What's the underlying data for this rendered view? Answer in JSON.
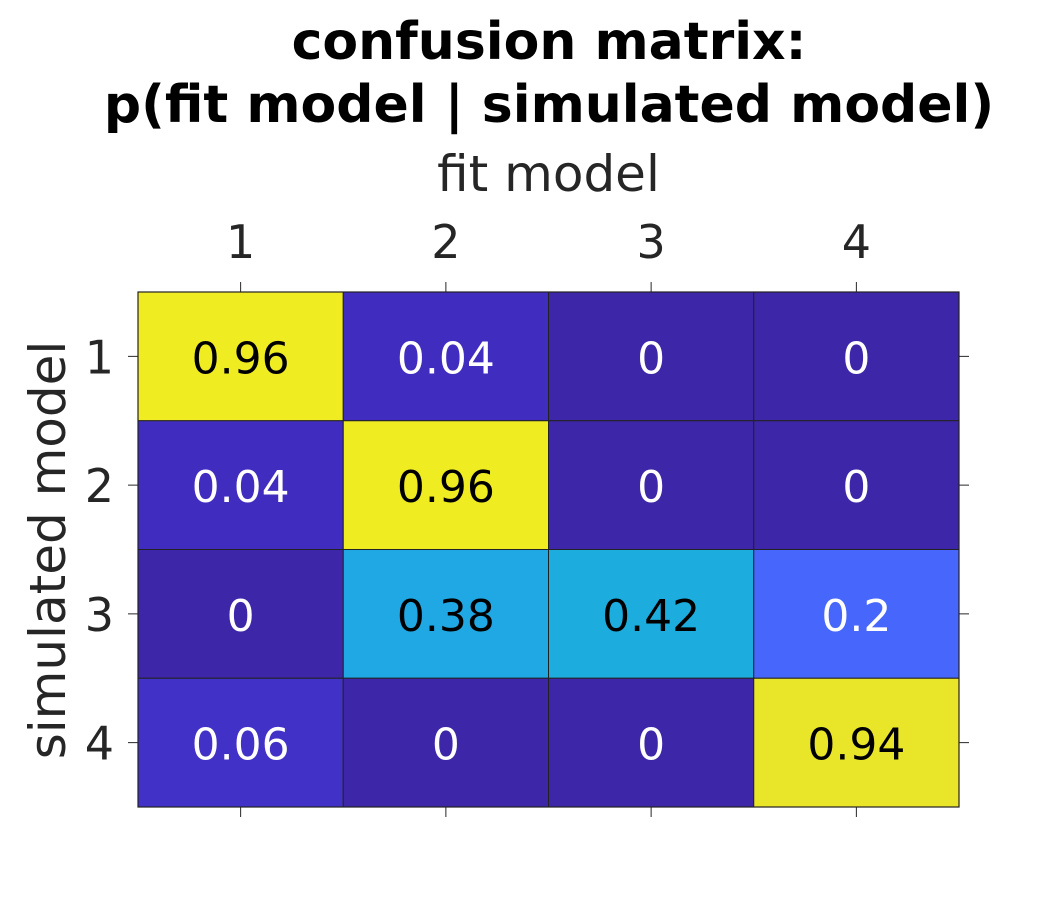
{
  "chart_data": {
    "type": "heatmap",
    "title": [
      "confusion matrix:",
      "p(fit model | simulated model)"
    ],
    "xlabel": "fit model",
    "ylabel": "simulated model",
    "x_categories": [
      "1",
      "2",
      "3",
      "4"
    ],
    "y_categories": [
      "1",
      "2",
      "3",
      "4"
    ],
    "x_axis_position": "top",
    "values": [
      [
        0.96,
        0.04,
        0,
        0
      ],
      [
        0.04,
        0.96,
        0,
        0
      ],
      [
        0,
        0.38,
        0.42,
        0.2
      ],
      [
        0.06,
        0,
        0,
        0.94
      ]
    ],
    "cell_labels": [
      [
        "0.96",
        "0.04",
        "0",
        "0"
      ],
      [
        "0.04",
        "0.96",
        "0",
        "0"
      ],
      [
        "0",
        "0.38",
        "0.42",
        "0.2"
      ],
      [
        "0.06",
        "0",
        "0",
        "0.94"
      ]
    ],
    "colormap": "parula",
    "clim": [
      0,
      1
    ],
    "colors": {
      "low": "#3e26a8",
      "high": "#f9fb15",
      "text_dark": "#000000",
      "text_light": "#ffffff",
      "axis_text": "#262626"
    }
  }
}
